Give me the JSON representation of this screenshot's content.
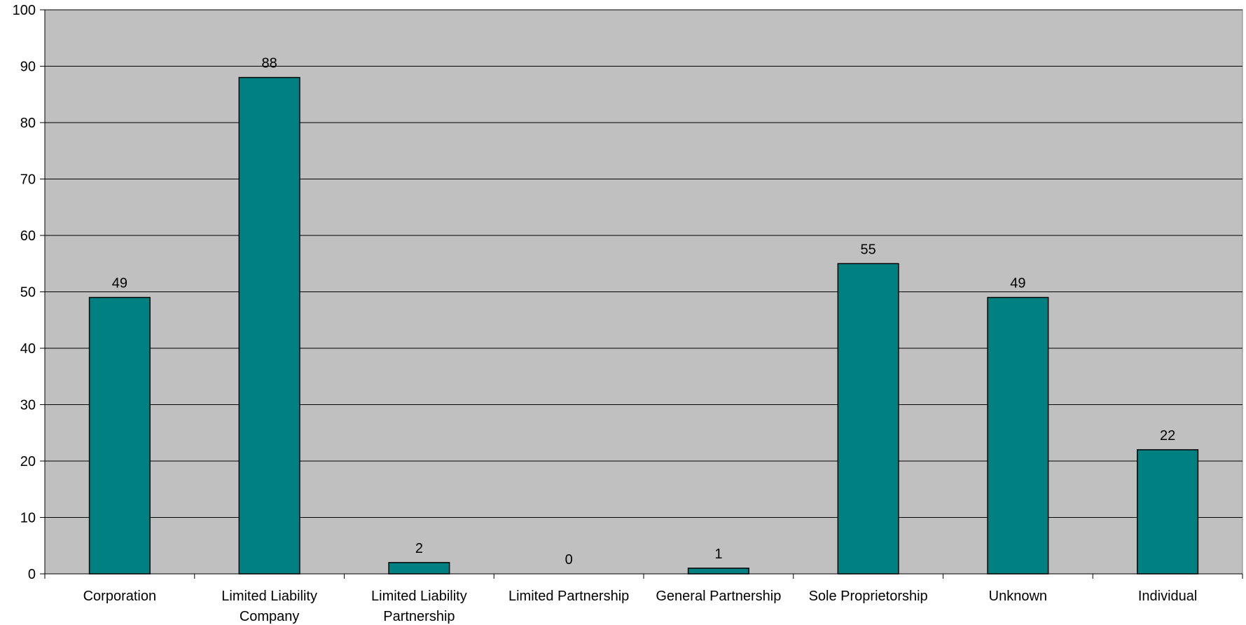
{
  "chart_data": {
    "type": "bar",
    "categories": [
      [
        "Corporation"
      ],
      [
        "Limited Liability",
        "Company"
      ],
      [
        "Limited Liability",
        "Partnership"
      ],
      [
        "Limited Partnership"
      ],
      [
        "General Partnership"
      ],
      [
        "Sole Proprietorship"
      ],
      [
        "Unknown"
      ],
      [
        "Individual"
      ]
    ],
    "values": [
      49,
      88,
      2,
      0,
      1,
      55,
      49,
      22
    ],
    "data_labels": [
      "49",
      "88",
      "2",
      "0",
      "1",
      "55",
      "49",
      "22"
    ],
    "ylim": [
      0,
      100
    ],
    "yticks": [
      0,
      10,
      20,
      30,
      40,
      50,
      60,
      70,
      80,
      90,
      100
    ],
    "grid": true,
    "legend": "none",
    "colors": {
      "bar": "#008080",
      "plot_background": "#C0C0C0",
      "gridline": "#000000"
    }
  }
}
